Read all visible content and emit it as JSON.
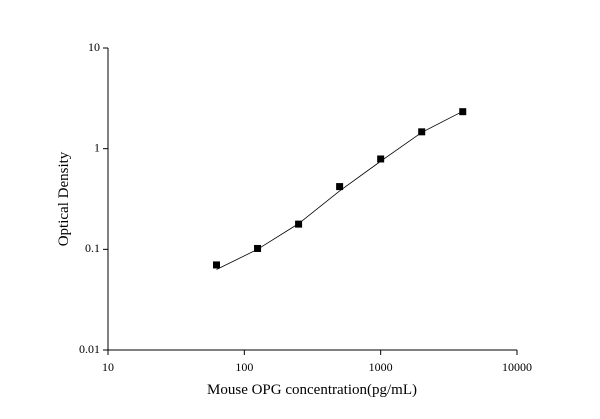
{
  "chart_data": {
    "type": "scatter",
    "x_label": "Mouse OPG concentration(pg/mL)",
    "y_label": "Optical Density",
    "x": [
      62.5,
      125,
      250,
      500,
      1000,
      2000,
      4000
    ],
    "series": [
      {
        "color": "#000000",
        "values": [
          0.07,
          0.102,
          0.178,
          0.42,
          0.79,
          1.47,
          2.33
        ]
      }
    ],
    "fit": {
      "color": "#000000",
      "x": [
        62.5,
        125,
        250,
        500,
        1000,
        2000,
        4000
      ],
      "values": [
        0.063,
        0.1,
        0.18,
        0.38,
        0.75,
        1.45,
        2.35
      ]
    },
    "xscale": "log",
    "yscale": "log",
    "xlim": [
      10,
      10000
    ],
    "ylim": [
      0.01,
      10
    ],
    "xticks": [
      10,
      100,
      1000,
      10000
    ],
    "yticks": [
      0.01,
      0.1,
      1,
      10
    ]
  }
}
